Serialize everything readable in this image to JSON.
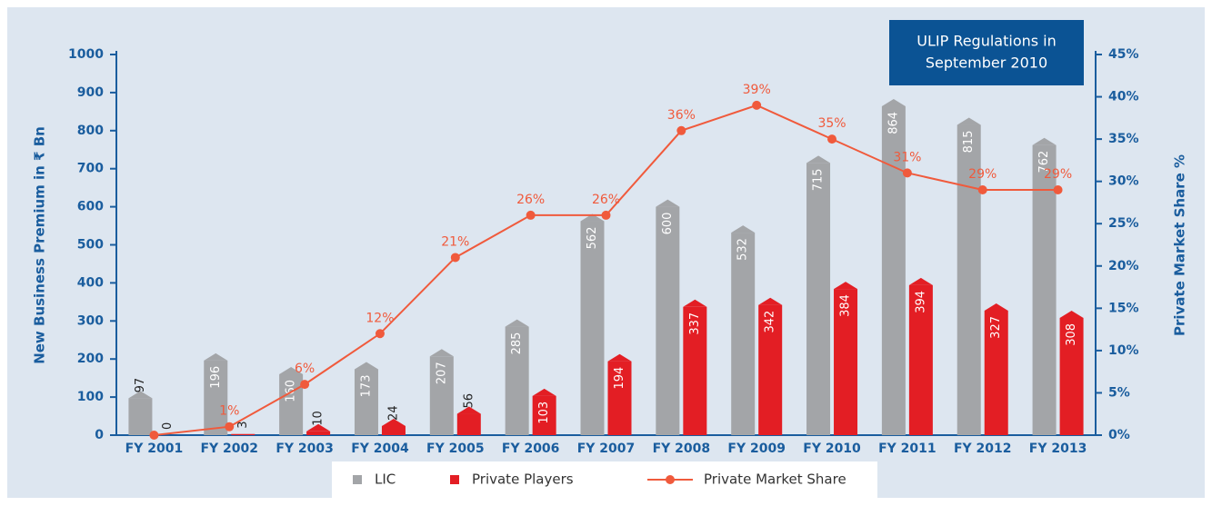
{
  "chart_data": {
    "type": "bar_line",
    "categories": [
      "FY 2001",
      "FY 2002",
      "FY 2003",
      "FY 2004",
      "FY 2005",
      "FY 2006",
      "FY 2007",
      "FY 2008",
      "FY 2009",
      "FY 2010",
      "FY 2011",
      "FY 2012",
      "FY 2013"
    ],
    "series": [
      {
        "name": "LIC",
        "type": "bar",
        "color": "#a3a5a8",
        "values": [
          97,
          196,
          160,
          173,
          207,
          285,
          562,
          600,
          532,
          715,
          864,
          815,
          762
        ]
      },
      {
        "name": "Private Players",
        "type": "bar",
        "color": "#e31e24",
        "values": [
          0,
          3,
          10,
          24,
          56,
          103,
          194,
          337,
          342,
          384,
          394,
          327,
          308
        ]
      },
      {
        "name": "Private Market Share",
        "type": "line",
        "axis": "y2",
        "color": "#f05a3c",
        "values": [
          0,
          1,
          6,
          12,
          21,
          26,
          26,
          36,
          39,
          35,
          31,
          29,
          29
        ],
        "value_labels": [
          null,
          "1%",
          "6%",
          "12%",
          "21%",
          "26%",
          "26%",
          "36%",
          "39%",
          "35%",
          "31%",
          "29%",
          "29%"
        ]
      }
    ],
    "ylabel": "New Business Premium in ₹ Bn",
    "y2label": "Private Market Share %",
    "ylim": [
      0,
      1000
    ],
    "yticks": [
      0,
      100,
      200,
      300,
      400,
      500,
      600,
      700,
      800,
      900,
      1000
    ],
    "y2lim": [
      0,
      45
    ],
    "y2ticks": [
      {
        "value": 0,
        "label": "0%"
      },
      {
        "value": 5,
        "label": "5%"
      },
      {
        "value": 10,
        "label": "10%"
      },
      {
        "value": 15,
        "label": "15%"
      },
      {
        "value": 20,
        "label": "20%"
      },
      {
        "value": 25,
        "label": "25%"
      },
      {
        "value": 30,
        "label": "30%"
      },
      {
        "value": 35,
        "label": "35%"
      },
      {
        "value": 40,
        "label": "40%"
      },
      {
        "value": 45,
        "label": "45%"
      }
    ],
    "annotation": [
      "ULIP Regulations in",
      "September 2010"
    ],
    "highlight_color": "#a0112a"
  }
}
